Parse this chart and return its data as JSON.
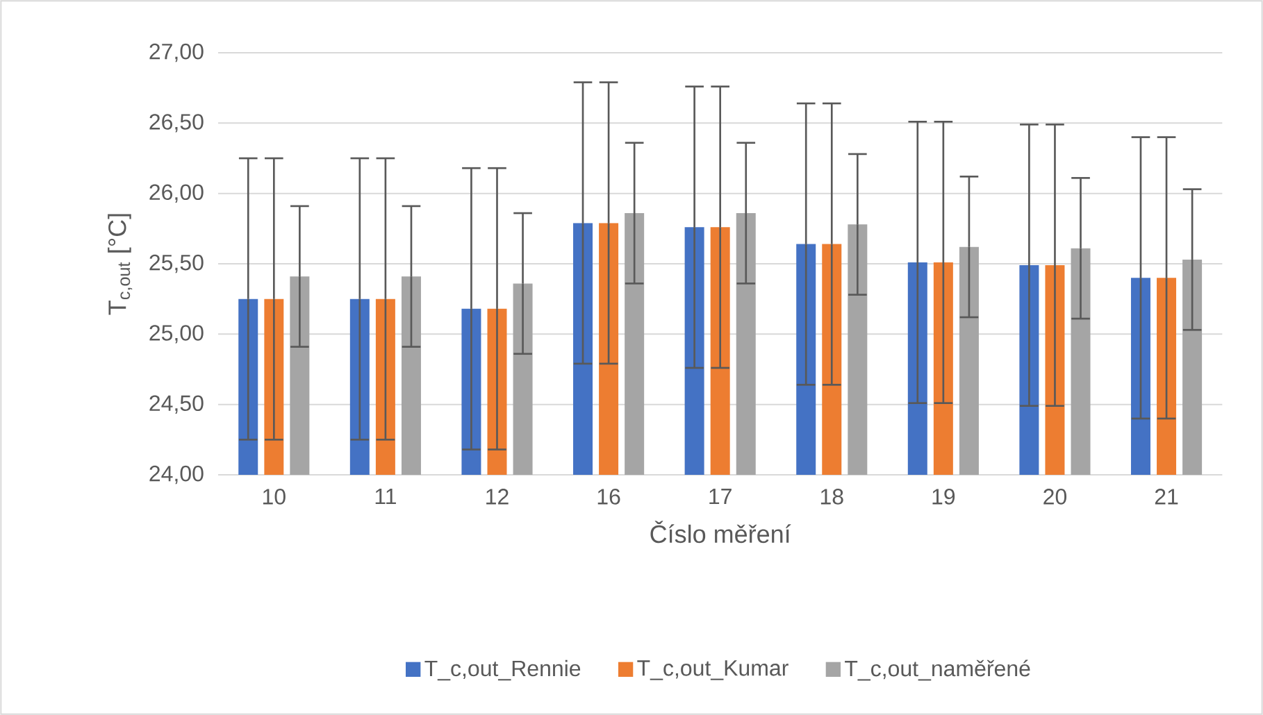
{
  "chart_data": {
    "type": "bar",
    "xlabel": "Číslo měření",
    "ylabel": "T$_{c,out}$ [°C]",
    "categories": [
      "10",
      "11",
      "12",
      "16",
      "17",
      "18",
      "19",
      "20",
      "21"
    ],
    "series": [
      {
        "name": "T_c,out_Rennie",
        "color": "#4472c4",
        "values": [
          25.25,
          25.25,
          25.18,
          25.79,
          25.76,
          25.64,
          25.51,
          25.49,
          25.4
        ],
        "errors": [
          1,
          1,
          1,
          1,
          1,
          1,
          1,
          1,
          1
        ]
      },
      {
        "name": "T_c,out_Kumar",
        "color": "#ed7d31",
        "values": [
          25.25,
          25.25,
          25.18,
          25.79,
          25.76,
          25.64,
          25.51,
          25.49,
          25.4
        ],
        "errors": [
          1,
          1,
          1,
          1,
          1,
          1,
          1,
          1,
          1
        ]
      },
      {
        "name": "T_c,out_naměřené",
        "color": "#a5a5a5",
        "values": [
          25.41,
          25.41,
          25.36,
          25.86,
          25.86,
          25.78,
          25.62,
          25.61,
          25.53
        ],
        "errors": [
          0.5,
          0.5,
          0.5,
          0.5,
          0.5,
          0.5,
          0.5,
          0.5,
          0.5
        ]
      }
    ],
    "ylim": [
      24,
      27
    ],
    "yticks": [
      {
        "value": 24,
        "label": "24,00"
      },
      {
        "value": 24.5,
        "label": "24,50"
      },
      {
        "value": 25,
        "label": "25,00"
      },
      {
        "value": 25.5,
        "label": "25,50"
      },
      {
        "value": 26,
        "label": "26,00"
      },
      {
        "value": 26.5,
        "label": "26,50"
      },
      {
        "value": 27,
        "label": "27,00"
      }
    ],
    "grid": "y",
    "legend": "bottom"
  }
}
